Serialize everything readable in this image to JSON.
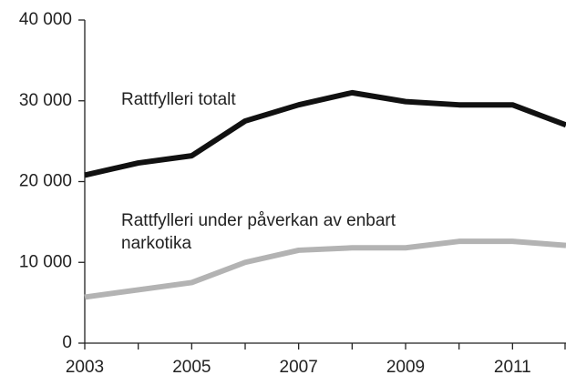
{
  "chart_data": {
    "type": "line",
    "x": [
      2003,
      2004,
      2005,
      2006,
      2007,
      2008,
      2009,
      2010,
      2011,
      2012
    ],
    "series": [
      {
        "name": "Rattfylleri totalt",
        "color": "#111111",
        "values": [
          20800,
          22300,
          23200,
          27500,
          29500,
          31000,
          29900,
          29500,
          29500,
          27000
        ]
      },
      {
        "name": "Rattfylleri under påverkan av enbart narkotika",
        "color": "#b3b3b3",
        "values": [
          5700,
          6600,
          7500,
          10000,
          11500,
          11800,
          11800,
          12600,
          12600,
          12100
        ]
      }
    ],
    "annotations": [
      {
        "lines": [
          "Rattfylleri totalt"
        ]
      },
      {
        "lines": [
          "Rattfylleri under påverkan av enbart",
          "narkotika"
        ]
      }
    ],
    "xlim": [
      2003,
      2012
    ],
    "xticks": [
      2003,
      2005,
      2007,
      2009,
      2011
    ],
    "xminorticks": [
      2004,
      2006,
      2008,
      2010,
      2012
    ],
    "ylim": [
      0,
      40000
    ],
    "yticks": [
      {
        "value": 0,
        "label": "0"
      },
      {
        "value": 10000,
        "label": "10 000"
      },
      {
        "value": 20000,
        "label": "20 000"
      },
      {
        "value": 30000,
        "label": "30 000"
      },
      {
        "value": 40000,
        "label": "40 000"
      }
    ],
    "grid": false
  }
}
